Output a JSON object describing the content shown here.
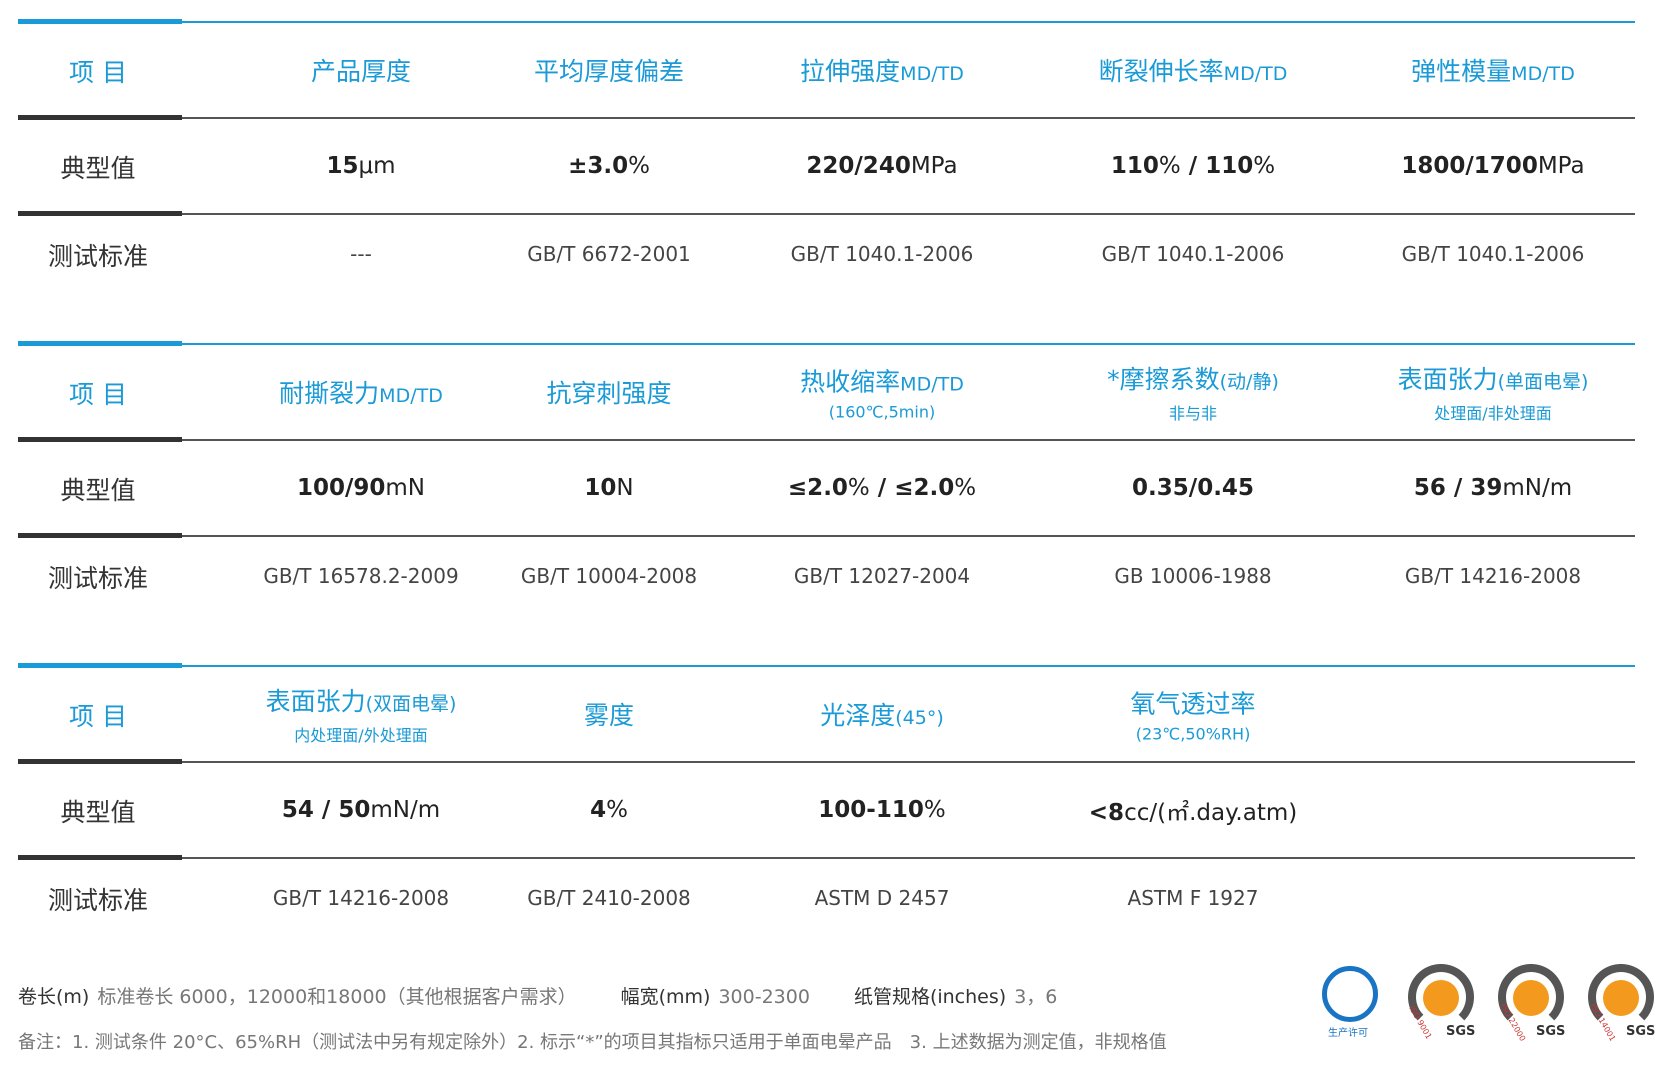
{
  "blocks": [
    {
      "header": {
        "label": "项 目",
        "columns": [
          {
            "title": "产品厚度"
          },
          {
            "title": "平均厚度偏差"
          },
          {
            "title": "拉伸强度",
            "unit": "MD/TD"
          },
          {
            "title": "断裂伸长率",
            "unit": "MD/TD"
          },
          {
            "title": "弹性模量",
            "unit": "MD/TD"
          }
        ]
      },
      "typical": {
        "label": "典型值",
        "values": [
          [
            {
              "text": "15",
              "bold": true
            },
            {
              "text": "μm",
              "bold": false
            }
          ],
          [
            {
              "text": "±3.0",
              "bold": true
            },
            {
              "text": "%",
              "bold": false
            }
          ],
          [
            {
              "text": "220/240",
              "bold": true
            },
            {
              "text": "MPa",
              "bold": false
            }
          ],
          [
            {
              "text": "110",
              "bold": true
            },
            {
              "text": "%",
              "bold": false
            },
            {
              "text": " / 110",
              "bold": true
            },
            {
              "text": "%",
              "bold": false
            }
          ],
          [
            {
              "text": "1800/1700",
              "bold": true
            },
            {
              "text": "MPa",
              "bold": false
            }
          ]
        ]
      },
      "standard": {
        "label": "测试标准",
        "values": [
          "---",
          "GB/T 6672-2001",
          "GB/T 1040.1-2006",
          "GB/T 1040.1-2006",
          "GB/T 1040.1-2006"
        ]
      }
    },
    {
      "header": {
        "label": "项 目",
        "columns": [
          {
            "title": "耐撕裂力",
            "unit": "MD/TD"
          },
          {
            "title": "抗穿刺强度"
          },
          {
            "title": "热收缩率",
            "unit": "MD/TD",
            "sub": "(160℃,5min)"
          },
          {
            "title": "*摩擦系数",
            "unit": "(动/静)",
            "sub": "非与非"
          },
          {
            "title": "表面张力",
            "unit": "(单面电晕)",
            "sub": "处理面/非处理面"
          }
        ]
      },
      "typical": {
        "label": "典型值",
        "values": [
          [
            {
              "text": "100/90",
              "bold": true
            },
            {
              "text": "mN",
              "bold": false
            }
          ],
          [
            {
              "text": "10",
              "bold": true
            },
            {
              "text": "N",
              "bold": false
            }
          ],
          [
            {
              "text": "≤2.0",
              "bold": true
            },
            {
              "text": "%",
              "bold": false
            },
            {
              "text": " / ≤2.0",
              "bold": true
            },
            {
              "text": "%",
              "bold": false
            }
          ],
          [
            {
              "text": "0.35/0.45",
              "bold": true
            }
          ],
          [
            {
              "text": "56 / 39",
              "bold": true
            },
            {
              "text": "mN/m",
              "bold": false
            }
          ]
        ]
      },
      "standard": {
        "label": "测试标准",
        "values": [
          "GB/T 16578.2-2009",
          "GB/T 10004-2008",
          "GB/T 12027-2004",
          "GB 10006-1988",
          "GB/T 14216-2008"
        ]
      }
    },
    {
      "header": {
        "label": "项 目",
        "columns": [
          {
            "title": "表面张力",
            "unit": "(双面电晕)",
            "sub": "内处理面/外处理面"
          },
          {
            "title": "雾度"
          },
          {
            "title": "光泽度",
            "unit": "(45°)"
          },
          {
            "title": "氧气透过率",
            "sub": "(23℃,50%RH)"
          }
        ]
      },
      "typical": {
        "label": "典型值",
        "values": [
          [
            {
              "text": "54 / 50",
              "bold": true
            },
            {
              "text": "mN/m",
              "bold": false
            }
          ],
          [
            {
              "text": "4",
              "bold": true
            },
            {
              "text": "%",
              "bold": false
            }
          ],
          [
            {
              "text": "100-110",
              "bold": true
            },
            {
              "text": "%",
              "bold": false
            }
          ],
          [
            {
              "text": "<8",
              "bold": true
            },
            {
              "text": "cc/(㎡.day.atm)",
              "bold": false
            }
          ]
        ]
      },
      "standard": {
        "label": "测试标准",
        "values": [
          "GB/T 14216-2008",
          "GB/T 2410-2008",
          "ASTM D 2457",
          "ASTM F 1927"
        ]
      }
    }
  ],
  "footer": {
    "specs": [
      {
        "label": "卷长(m)",
        "value": "标准卷长 6000，12000和18000（其他根据客户需求）"
      },
      {
        "label": "幅宽(mm)",
        "value": "300-2300"
      },
      {
        "label": "纸管规格(inches)",
        "value": "3，6"
      }
    ],
    "note": "备注：1. 测试条件 20°C、65%RH（测试法中另有规定除外）2. 标示“*”的项目其指标只适用于单面电晕产品　3. 上述数据为测定值，非规格值"
  },
  "logos": [
    {
      "text": "生产许可"
    },
    {
      "text": "ISO 9001",
      "brand": "SGS"
    },
    {
      "text": "ISO 22000",
      "brand": "SGS"
    },
    {
      "text": "ISO 14001",
      "brand": "SGS"
    }
  ]
}
